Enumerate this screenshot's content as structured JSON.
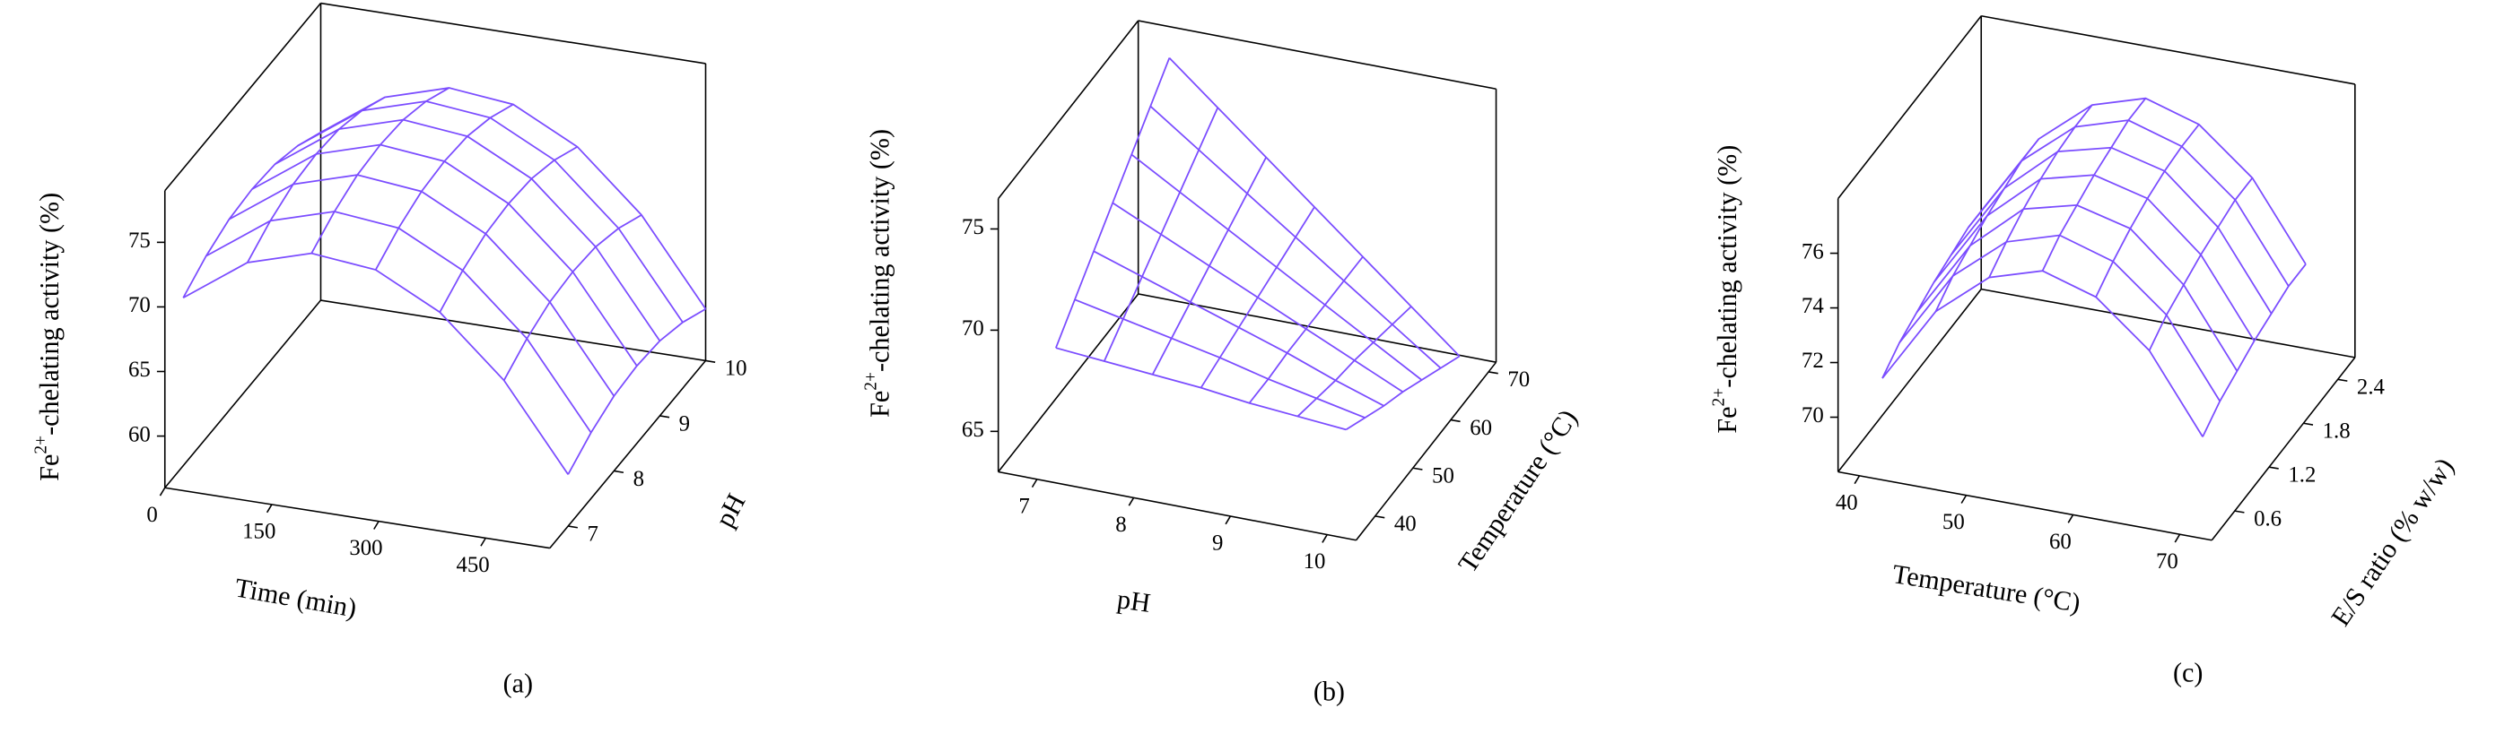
{
  "chart_data": [
    {
      "type": "surface",
      "caption": "(a)",
      "xlabel": "Time (min)",
      "ylabel": "pH",
      "zlabel": [
        "Fe",
        "2+",
        "-chelating activity (%)"
      ],
      "color": "#7b4dff",
      "x": [
        0,
        90,
        180,
        270,
        360,
        450,
        540
      ],
      "y": [
        7,
        7.5,
        8,
        8.5,
        9,
        9.5,
        10
      ],
      "z": [
        [
          69,
          72.5,
          74,
          73.5,
          71,
          66.5,
          60
        ],
        [
          70.1,
          73.6,
          75.1,
          74.6,
          72.1,
          67.6,
          61.1
        ],
        [
          70.8,
          74.3,
          75.8,
          75.3,
          72.8,
          68.3,
          61.8
        ],
        [
          71,
          74.5,
          76,
          75.5,
          73,
          68.5,
          62
        ],
        [
          70.8,
          74.3,
          75.8,
          75.3,
          72.8,
          68.3,
          61.8
        ],
        [
          70.1,
          73.6,
          75.1,
          74.6,
          72.1,
          67.6,
          61.1
        ],
        [
          69,
          72.5,
          74,
          73.5,
          71,
          66.5,
          60
        ]
      ],
      "xlim": [
        0,
        540
      ],
      "ylim": [
        6.6,
        10
      ],
      "zlim": [
        56,
        79
      ],
      "xticks": [
        0,
        150,
        300,
        450
      ],
      "yticks": [
        7,
        8,
        9,
        10
      ],
      "zticks": [
        60,
        65,
        70,
        75
      ]
    },
    {
      "type": "surface",
      "caption": "(b)",
      "xlabel": "pH",
      "ylabel": "Temperature (°C)",
      "zlabel": [
        "Fe",
        "2+",
        "-chelating activity (%)"
      ],
      "color": "#7b4dff",
      "x": [
        7,
        7.5,
        8,
        8.5,
        9,
        9.5,
        10
      ],
      "y": [
        40,
        45,
        50,
        55,
        60,
        65,
        70
      ],
      "z": [
        [
          68.3,
          68.1,
          67.9,
          67.7,
          67.4,
          67.2,
          67.0
        ],
        [
          69.5,
          69.0,
          68.5,
          68.0,
          67.4,
          66.9,
          66.4
        ],
        [
          70.7,
          69.9,
          69.1,
          68.3,
          67.5,
          66.6,
          65.8
        ],
        [
          71.9,
          70.8,
          69.7,
          68.6,
          67.5,
          66.4,
          65.3
        ],
        [
          73.1,
          71.7,
          70.3,
          68.9,
          67.5,
          66.1,
          64.7
        ],
        [
          74.3,
          72.6,
          70.9,
          69.2,
          67.5,
          65.8,
          64.1
        ],
        [
          75.5,
          73.5,
          71.5,
          69.5,
          67.5,
          65.5,
          63.5
        ]
      ],
      "xlim": [
        6.6,
        10.3
      ],
      "ylim": [
        35,
        72
      ],
      "zlim": [
        63,
        76.5
      ],
      "xticks": [
        7,
        8,
        9,
        10
      ],
      "yticks": [
        40,
        50,
        60,
        70
      ],
      "zticks": [
        65,
        70,
        75
      ]
    },
    {
      "type": "surface",
      "caption": "(c)",
      "xlabel": "Temperature (°C)",
      "ylabel": "E/S ratio (% w/w)",
      "zlabel": [
        "Fe",
        "2+",
        "-chelating activity (%)"
      ],
      "color": "#7b4dff",
      "x": [
        40,
        45,
        50,
        55,
        60,
        65,
        70
      ],
      "y": [
        0.6,
        0.9,
        1.2,
        1.5,
        1.8,
        2.1,
        2.4
      ],
      "z": [
        [
          70.5,
          73.3,
          74.9,
          75.5,
          74.9,
          73.3,
          70.5
        ],
        [
          71.0,
          73.8,
          75.4,
          76.0,
          75.4,
          73.8,
          71.0
        ],
        [
          71.3,
          74.1,
          75.8,
          76.3,
          75.8,
          74.1,
          71.3
        ],
        [
          71.6,
          74.4,
          76.1,
          76.6,
          76.1,
          74.4,
          71.6
        ],
        [
          71.8,
          74.6,
          76.3,
          76.8,
          76.3,
          74.6,
          71.8
        ],
        [
          72.0,
          74.8,
          76.4,
          77.0,
          76.4,
          74.8,
          72.0
        ],
        [
          72.0,
          74.8,
          76.4,
          77.0,
          76.4,
          74.8,
          72.0
        ]
      ],
      "xlim": [
        38,
        73
      ],
      "ylim": [
        0.2,
        2.7
      ],
      "zlim": [
        68,
        78
      ],
      "xticks": [
        40,
        50,
        60,
        70
      ],
      "yticks": [
        0.6,
        1.2,
        1.8,
        2.4
      ],
      "zticks": [
        70,
        72,
        74,
        76
      ]
    }
  ]
}
